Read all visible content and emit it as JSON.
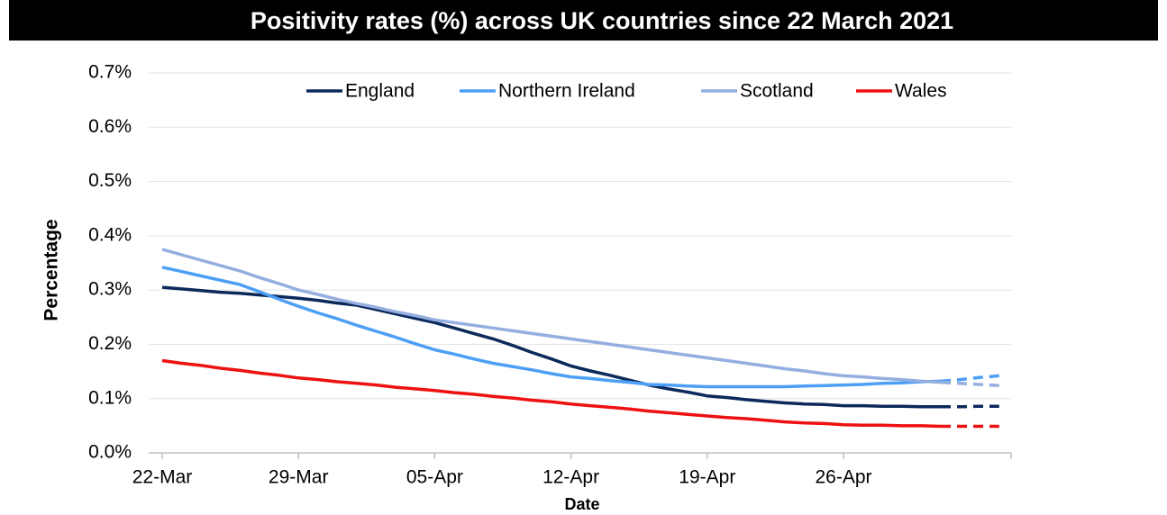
{
  "chart_data": {
    "type": "line",
    "title": "Positivity rates (%) across UK countries since 22 March 2021",
    "x_label": "Date",
    "y_label": "Percentage",
    "categories": [
      "22-Mar",
      null,
      null,
      null,
      null,
      null,
      null,
      "29-Mar",
      null,
      null,
      null,
      null,
      null,
      null,
      "05-Apr",
      null,
      null,
      null,
      null,
      null,
      null,
      "12-Apr",
      null,
      null,
      null,
      null,
      null,
      null,
      "19-Apr",
      null,
      null,
      null,
      null,
      null,
      null,
      "26-Apr",
      null,
      null,
      null,
      null,
      null,
      null,
      null,
      null
    ],
    "series": [
      {
        "name": "England",
        "color": "#0b2a5b",
        "values": [
          0.305,
          0.302,
          0.299,
          0.296,
          0.294,
          0.291,
          0.288,
          0.285,
          0.281,
          0.276,
          0.272,
          0.264,
          0.256,
          0.248,
          0.24,
          0.23,
          0.22,
          0.21,
          0.198,
          0.185,
          0.173,
          0.16,
          0.151,
          0.143,
          0.134,
          0.125,
          0.118,
          0.112,
          0.105,
          0.102,
          0.098,
          0.095,
          0.092,
          0.09,
          0.089,
          0.087,
          0.087,
          0.086,
          0.086,
          0.085,
          0.085,
          0.085,
          0.086,
          0.086
        ]
      },
      {
        "name": "Northern Ireland",
        "color": "#4d9ff5",
        "values": [
          0.342,
          0.334,
          0.326,
          0.318,
          0.31,
          0.297,
          0.283,
          0.27,
          0.258,
          0.247,
          0.235,
          0.224,
          0.213,
          0.201,
          0.19,
          0.182,
          0.173,
          0.165,
          0.159,
          0.153,
          0.146,
          0.14,
          0.137,
          0.133,
          0.13,
          0.126,
          0.125,
          0.123,
          0.122,
          0.122,
          0.122,
          0.122,
          0.122,
          0.123,
          0.124,
          0.125,
          0.126,
          0.128,
          0.129,
          0.131,
          0.132,
          0.135,
          0.139,
          0.142
        ]
      },
      {
        "name": "Scotland",
        "color": "#94aee0",
        "values": [
          0.375,
          0.365,
          0.355,
          0.345,
          0.335,
          0.323,
          0.312,
          0.3,
          0.292,
          0.283,
          0.275,
          0.268,
          0.26,
          0.253,
          0.245,
          0.24,
          0.235,
          0.23,
          0.225,
          0.22,
          0.215,
          0.21,
          0.205,
          0.2,
          0.195,
          0.19,
          0.185,
          0.18,
          0.175,
          0.17,
          0.165,
          0.16,
          0.155,
          0.151,
          0.146,
          0.142,
          0.14,
          0.137,
          0.135,
          0.132,
          0.13,
          0.128,
          0.126,
          0.124
        ]
      },
      {
        "name": "Wales",
        "color": "#ee1111",
        "values": [
          0.17,
          0.165,
          0.161,
          0.156,
          0.152,
          0.147,
          0.143,
          0.138,
          0.135,
          0.131,
          0.128,
          0.125,
          0.121,
          0.118,
          0.115,
          0.111,
          0.108,
          0.104,
          0.101,
          0.097,
          0.094,
          0.09,
          0.087,
          0.084,
          0.081,
          0.077,
          0.074,
          0.071,
          0.068,
          0.065,
          0.063,
          0.06,
          0.057,
          0.055,
          0.054,
          0.052,
          0.051,
          0.051,
          0.05,
          0.05,
          0.049,
          0.049,
          0.049,
          0.049
        ]
      }
    ],
    "dashed_from": 40,
    "ylim": [
      0,
      0.7
    ],
    "yticks": [
      {
        "value": 0,
        "label": "0.0%"
      },
      {
        "value": 0.1,
        "label": "0.1%"
      },
      {
        "value": 0.2,
        "label": "0.2%"
      },
      {
        "value": 0.3,
        "label": "0.3%"
      },
      {
        "value": 0.4,
        "label": "0.4%"
      },
      {
        "value": 0.5,
        "label": "0.5%"
      },
      {
        "value": 0.6,
        "label": "0.6%"
      },
      {
        "value": 0.7,
        "label": "0.7%"
      }
    ],
    "grid": true,
    "legend": "top"
  }
}
